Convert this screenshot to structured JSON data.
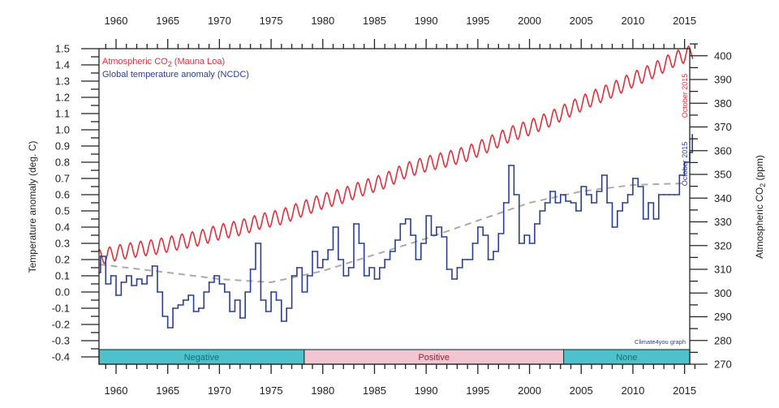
{
  "chart_data": {
    "type": "line",
    "legend": {
      "placement": "top-left",
      "co2_label_prefix": "Atmospheric CO",
      "co2_label_sub": "2",
      "co2_label_suffix": " (Mauna Loa)",
      "temp_label": "Global temperature anomaly (NCDC)"
    },
    "ylabel_left": "Temperature anomaly (deg. C)",
    "ylabel_right_prefix": "Atmospheric CO",
    "ylabel_right_sub": "2",
    "ylabel_right_suffix": " (ppm)",
    "xlim": [
      1958.35,
      2015.5
    ],
    "ylim_left": [
      -0.445,
      1.5
    ],
    "ylim_right": [
      270,
      403
    ],
    "x_ticks": [
      1960,
      1965,
      1970,
      1975,
      1980,
      1985,
      1990,
      1995,
      2000,
      2005,
      2010,
      2015
    ],
    "x_tick_labels": [
      "1960",
      "1965",
      "1970",
      "1975",
      "1980",
      "1985",
      "1990",
      "1995",
      "2000",
      "2005",
      "2010",
      "2015"
    ],
    "y_left_ticks": [
      "1.5",
      "1.4",
      "1.3",
      "1.2",
      "1.1",
      "1.0",
      "0.9",
      "0.8",
      "0.7",
      "0.6",
      "0.5",
      "0.4",
      "0.3",
      "0.2",
      "0.1",
      "0.0",
      "-0.1",
      "-0.2",
      "-0.3",
      "-0.4"
    ],
    "y_right_ticks": [
      "400",
      "390",
      "380",
      "370",
      "360",
      "350",
      "340",
      "330",
      "320",
      "310",
      "300",
      "290",
      "280",
      "270"
    ],
    "grid": false,
    "colors": {
      "co2": "#e0303c",
      "temp": "#2b3d94",
      "trend": "#aaaaaa",
      "band_teal": "#4fc1cc",
      "band_pink": "#f2c6d0"
    },
    "series": [
      {
        "name": "Atmospheric CO2 (Mauna Loa)",
        "axis": "right",
        "x": [
          1958.3,
          1960,
          1962,
          1964,
          1966,
          1968,
          1970,
          1972,
          1974,
          1976,
          1978,
          1980,
          1982,
          1984,
          1986,
          1988,
          1990,
          1992,
          1994,
          1996,
          1998,
          2000,
          2002,
          2004,
          2006,
          2008,
          2010,
          2012,
          2014,
          2015.8
        ],
        "y": [
          315,
          316.9,
          318.4,
          319.6,
          321.4,
          323.1,
          325.7,
          327.5,
          330.2,
          332.1,
          335.4,
          338.7,
          341.1,
          344.4,
          347.2,
          351.6,
          354.4,
          356.4,
          358.8,
          362.6,
          366.7,
          369.7,
          373.4,
          377.7,
          381.9,
          385.6,
          389.9,
          393.8,
          398.6,
          401.5
        ],
        "seasonal_amplitude_ppm": 3.2,
        "end_note": "October 2015"
      },
      {
        "name": "Global temperature anomaly (NCDC)",
        "axis": "left",
        "x": [
          1958.4,
          1958.5,
          1959,
          1959.5,
          1960,
          1960.5,
          1961,
          1961.5,
          1962,
          1962.5,
          1963,
          1963.5,
          1964,
          1964.5,
          1965,
          1965.5,
          1966,
          1966.5,
          1967,
          1967.5,
          1968,
          1968.5,
          1969,
          1969.5,
          1970,
          1970.5,
          1971,
          1971.5,
          1972,
          1972.5,
          1973,
          1973.5,
          1974,
          1974.5,
          1975,
          1975.5,
          1976,
          1976.5,
          1977,
          1977.5,
          1978,
          1978.5,
          1979,
          1979.5,
          1980,
          1980.5,
          1981,
          1981.5,
          1982,
          1982.5,
          1983,
          1983.5,
          1984,
          1984.5,
          1985,
          1985.5,
          1986,
          1986.5,
          1987,
          1987.5,
          1988,
          1988.5,
          1989,
          1989.5,
          1990,
          1990.5,
          1991,
          1991.5,
          1992,
          1992.5,
          1993,
          1993.5,
          1994,
          1994.5,
          1995,
          1995.5,
          1996,
          1996.5,
          1997,
          1997.5,
          1998,
          1998.5,
          1999,
          1999.5,
          2000,
          2000.5,
          2001,
          2001.5,
          2002,
          2002.5,
          2003,
          2003.5,
          2004,
          2004.5,
          2005,
          2005.5,
          2006,
          2006.5,
          2007,
          2007.5,
          2008,
          2008.5,
          2009,
          2009.5,
          2010,
          2010.5,
          2011,
          2011.5,
          2012,
          2012.5,
          2013,
          2013.5,
          2014,
          2014.5,
          2015,
          2015.5,
          2015.75
        ],
        "y": [
          0.12,
          0.22,
          0.05,
          0.1,
          -0.02,
          0.06,
          0.1,
          0.04,
          0.08,
          0.05,
          0.1,
          0.16,
          0.0,
          -0.15,
          -0.22,
          -0.1,
          -0.08,
          -0.05,
          -0.02,
          -0.12,
          -0.1,
          0.0,
          0.06,
          0.1,
          0.05,
          0.0,
          -0.12,
          -0.05,
          -0.16,
          0.0,
          0.14,
          0.3,
          -0.05,
          -0.12,
          0.0,
          -0.05,
          -0.18,
          -0.1,
          0.1,
          0.15,
          0.0,
          0.1,
          0.25,
          0.15,
          0.2,
          0.26,
          0.4,
          0.2,
          0.1,
          0.15,
          0.42,
          0.3,
          0.1,
          0.15,
          0.08,
          0.15,
          0.2,
          0.25,
          0.32,
          0.42,
          0.45,
          0.35,
          0.2,
          0.3,
          0.47,
          0.35,
          0.4,
          0.34,
          0.14,
          0.08,
          0.15,
          0.2,
          0.2,
          0.3,
          0.4,
          0.35,
          0.2,
          0.25,
          0.36,
          0.55,
          0.78,
          0.6,
          0.3,
          0.35,
          0.3,
          0.42,
          0.5,
          0.55,
          0.62,
          0.55,
          0.6,
          0.56,
          0.55,
          0.5,
          0.65,
          0.6,
          0.55,
          0.62,
          0.72,
          0.55,
          0.4,
          0.5,
          0.55,
          0.6,
          0.7,
          0.65,
          0.45,
          0.55,
          0.45,
          0.6,
          0.6,
          0.6,
          0.6,
          0.72,
          0.8,
          0.86,
          0.97
        ],
        "end_note": "October 2015"
      },
      {
        "axis": "left",
        "style": "dashed",
        "x": [
          1958.4,
          1965,
          1970,
          1975,
          1980,
          1985,
          1990,
          1995,
          2000,
          2005,
          2010,
          2015
        ],
        "y": [
          0.17,
          0.12,
          0.08,
          0.06,
          0.13,
          0.23,
          0.33,
          0.44,
          0.55,
          0.62,
          0.66,
          0.67
        ]
      }
    ],
    "bands": [
      {
        "label": "Negative",
        "start": 1958.35,
        "end": 1978.2,
        "color": "#4fc1cc",
        "text_color": "#17706f"
      },
      {
        "label": "Positive",
        "start": 1978.2,
        "end": 2003.3,
        "color": "#f2c6d0",
        "text_color": "#8c2434"
      },
      {
        "label": "None",
        "start": 2003.3,
        "end": 2015.5,
        "color": "#4fc1cc",
        "text_color": "#17706f"
      }
    ],
    "credit": "Climate4you graph"
  }
}
